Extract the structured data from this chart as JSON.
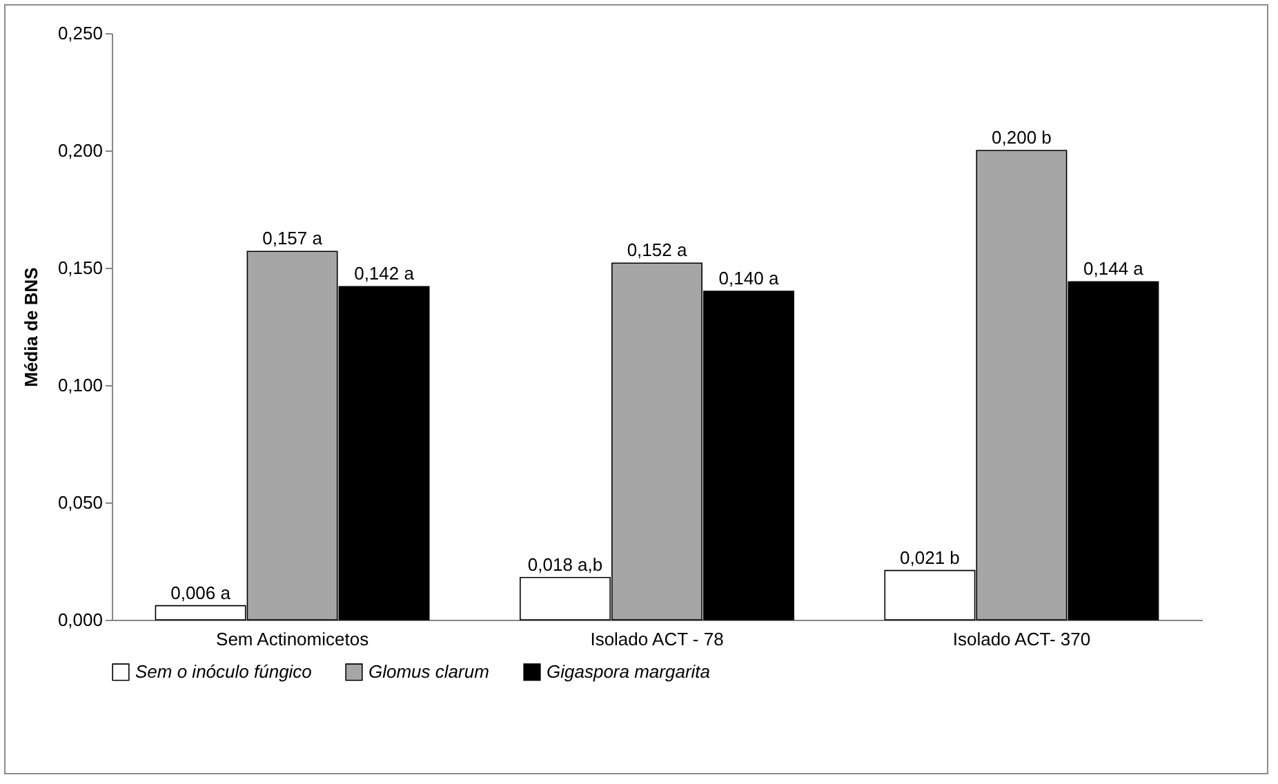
{
  "chart_data": {
    "type": "bar",
    "ylabel": "Média de BNS",
    "categories": [
      "Sem Actinomicetos",
      "Isolado ACT - 78",
      "Isolado ACT- 370"
    ],
    "series": [
      {
        "name": "Sem o inóculo fúngico",
        "color": "#ffffff",
        "values": [
          0.006,
          0.018,
          0.021
        ],
        "value_labels": [
          "0,006 a",
          "0,018 a,b",
          "0,021 b"
        ]
      },
      {
        "name": "Glomus clarum",
        "color": "#a6a6a6",
        "values": [
          0.157,
          0.152,
          0.2
        ],
        "value_labels": [
          "0,157 a",
          "0,152 a",
          "0,200 b"
        ]
      },
      {
        "name": "Gigaspora margarita",
        "color": "#000000",
        "values": [
          0.142,
          0.14,
          0.144
        ],
        "value_labels": [
          "0,142 a",
          "0,140 a",
          "0,144 a"
        ]
      }
    ],
    "ylim": [
      0,
      0.25
    ],
    "yticks": [
      {
        "value": 0,
        "label": "0,000"
      },
      {
        "value": 0.05,
        "label": "0,050"
      },
      {
        "value": 0.1,
        "label": "0,100"
      },
      {
        "value": 0.15,
        "label": "0,150"
      },
      {
        "value": 0.2,
        "label": "0,200"
      },
      {
        "value": 0.25,
        "label": "0,250"
      }
    ],
    "grid": false,
    "legend": "bottom"
  }
}
